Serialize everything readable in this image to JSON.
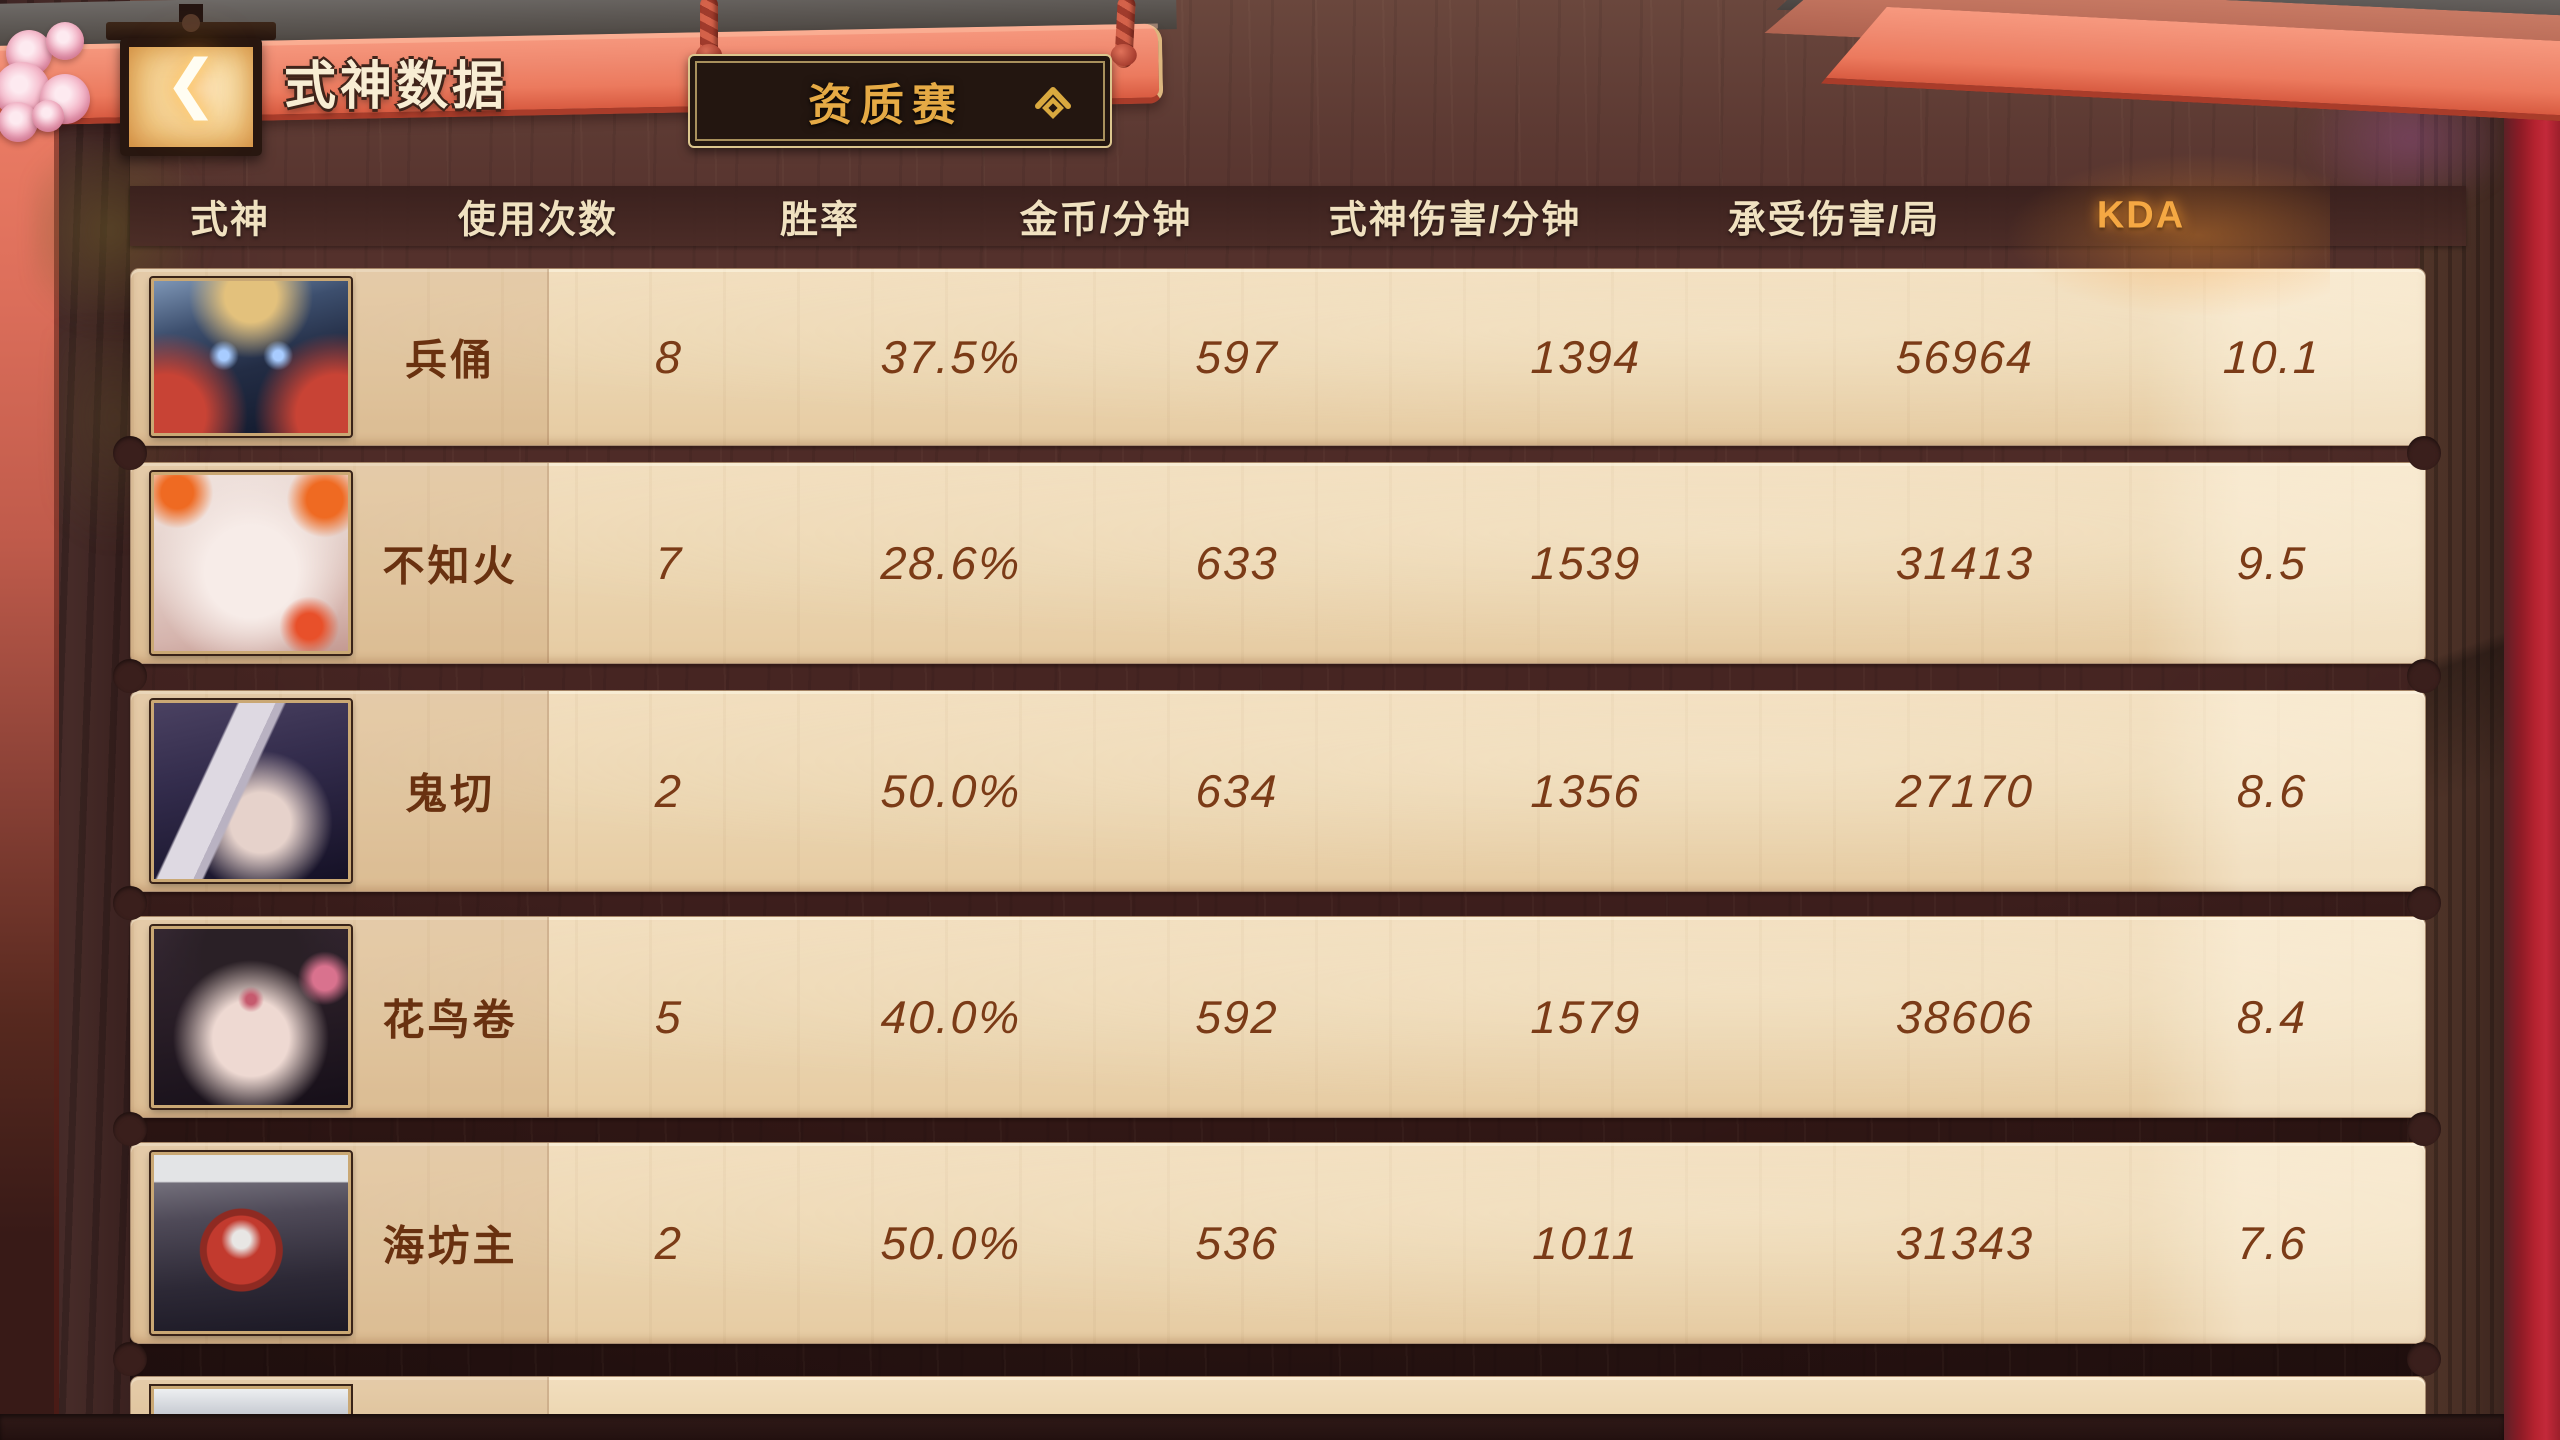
{
  "header": {
    "title": "式神数据",
    "back_icon": "❮",
    "mode_selector": {
      "label": "资质赛",
      "state_icon": "chevron-up-diamond"
    }
  },
  "table": {
    "columns": [
      "式神",
      "使用次数",
      "胜率",
      "金币/分钟",
      "式神伤害/分钟",
      "承受伤害/局",
      "KDA"
    ],
    "sort": {
      "column": "KDA",
      "direction": "desc",
      "icon": "▼"
    },
    "rows": [
      {
        "avatar": "bingyong",
        "name": "兵俑",
        "uses": "8",
        "win_rate": "37.5%",
        "gold_per_min": "597",
        "damage_per_min": "1394",
        "damage_taken_per_game": "56964",
        "kda": "10.1"
      },
      {
        "avatar": "buzhihuo",
        "name": "不知火",
        "uses": "7",
        "win_rate": "28.6%",
        "gold_per_min": "633",
        "damage_per_min": "1539",
        "damage_taken_per_game": "31413",
        "kda": "9.5"
      },
      {
        "avatar": "guiqie",
        "name": "鬼切",
        "uses": "2",
        "win_rate": "50.0%",
        "gold_per_min": "634",
        "damage_per_min": "1356",
        "damage_taken_per_game": "27170",
        "kda": "8.6"
      },
      {
        "avatar": "huaniaojuan",
        "name": "花鸟卷",
        "uses": "5",
        "win_rate": "40.0%",
        "gold_per_min": "592",
        "damage_per_min": "1579",
        "damage_taken_per_game": "38606",
        "kda": "8.4"
      },
      {
        "avatar": "haifangzhu",
        "name": "海坊主",
        "uses": "2",
        "win_rate": "50.0%",
        "gold_per_min": "536",
        "damage_per_min": "1011",
        "damage_taken_per_game": "31343",
        "kda": "7.6"
      }
    ],
    "next_row_partial": {
      "avatar": "white-haired-top-sliver"
    }
  },
  "colors": {
    "beam_salmon": "#f08a70",
    "parchment": "#ecd6b3",
    "value_brown": "#7b3b17",
    "header_cream": "#f0e1c0",
    "gold_accent": "#e5aa45",
    "kda_highlight": "#f5a843",
    "curtain_red": "#b5222f"
  }
}
